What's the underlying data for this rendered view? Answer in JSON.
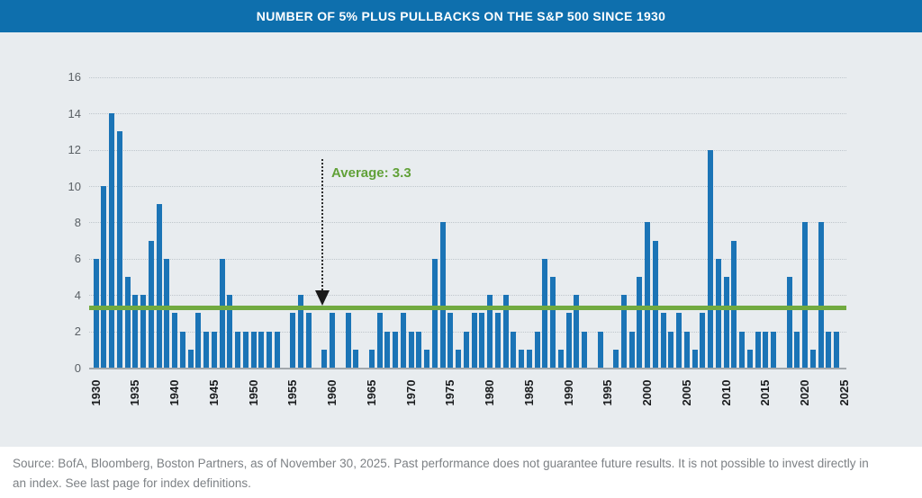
{
  "header": {
    "title": "NUMBER OF 5% PLUS PULLBACKS ON THE S&P 500 SINCE 1930"
  },
  "chart_data": {
    "type": "bar",
    "title": "NUMBER OF 5% PLUS PULLBACKS ON THE S&P 500 SINCE 1930",
    "xlabel": "",
    "ylabel": "",
    "start_year": 1930,
    "end_year": 2025,
    "values": [
      6,
      10,
      14,
      13,
      5,
      4,
      4,
      7,
      9,
      6,
      3,
      2,
      1,
      3,
      2,
      2,
      6,
      4,
      2,
      2,
      2,
      2,
      2,
      2,
      0,
      3,
      4,
      3,
      0,
      1,
      3,
      0,
      3,
      1,
      0,
      1,
      3,
      2,
      2,
      3,
      2,
      2,
      1,
      6,
      8,
      3,
      1,
      2,
      3,
      3,
      4,
      3,
      4,
      2,
      1,
      1,
      2,
      6,
      5,
      1,
      3,
      4,
      2,
      0,
      2,
      0,
      1,
      4,
      2,
      5,
      8,
      7,
      3,
      2,
      3,
      2,
      1,
      3,
      12,
      6,
      5,
      7,
      2,
      1,
      2,
      2,
      2,
      0,
      5,
      2,
      8,
      1,
      8,
      2,
      2,
      0
    ],
    "average": {
      "value": 3.3,
      "label": "Average: 3.3"
    },
    "yticks": [
      0,
      2,
      4,
      6,
      8,
      10,
      12,
      14,
      16
    ],
    "ylim": [
      0,
      16
    ],
    "xtick_years": [
      1930,
      1935,
      1940,
      1945,
      1950,
      1955,
      1960,
      1965,
      1970,
      1975,
      1980,
      1985,
      1990,
      1995,
      2000,
      2005,
      2010,
      2015,
      2020,
      2025
    ],
    "grid": "horizontal-dotted",
    "legend": "none",
    "bar_color": "#1b74b6",
    "average_line_color": "#71aa40",
    "annotation_arrow_color": "#1a1a1a"
  },
  "footer": {
    "line1": "Source: BofA, Bloomberg, Boston Partners, as of November 30, 2025. Past performance does not guarantee future results. It is not possible to invest directly in",
    "line2": "an index. See last page for index definitions."
  }
}
